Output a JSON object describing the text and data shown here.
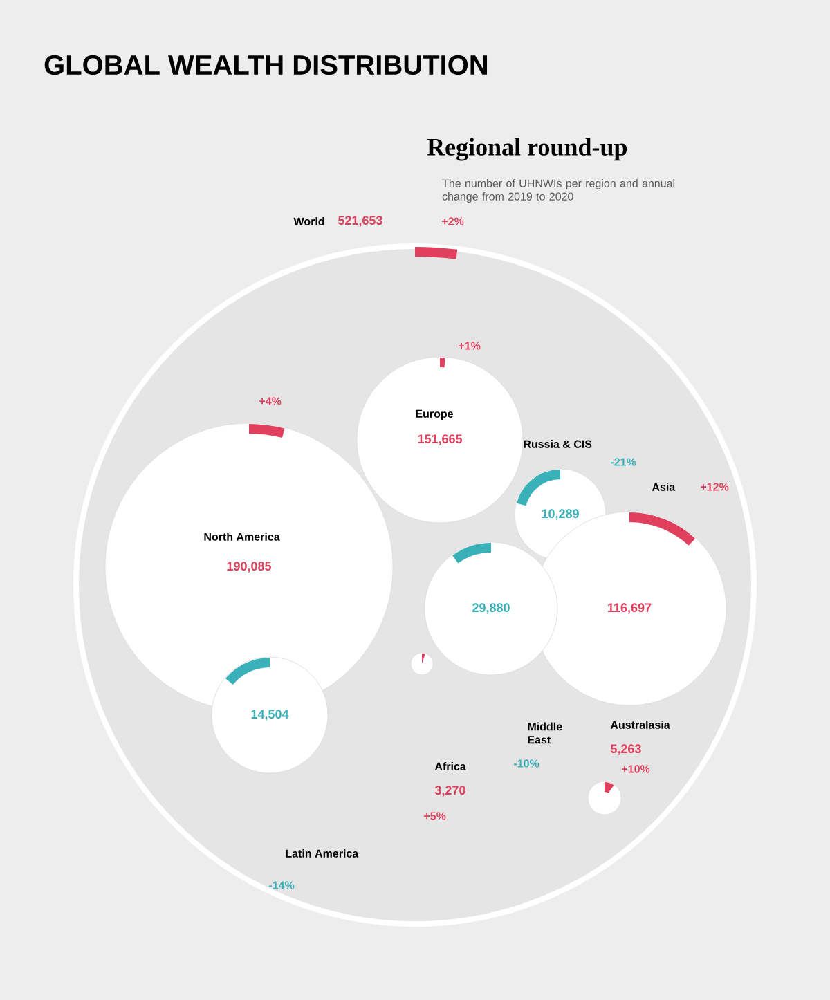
{
  "chart_data": {
    "type": "other",
    "title": "GLOBAL WEALTH DISTRIBUTION",
    "subtitle": "Regional round-up",
    "annotations": [
      "The number of UHNWIs per region and annual change from 2019 to 2020"
    ],
    "categories": [
      "World",
      "North America",
      "Europe",
      "Russia & CIS",
      "Asia",
      "Middle East",
      "Australasia",
      "Africa",
      "Latin America"
    ],
    "series": [
      {
        "values": [
          521653,
          190085,
          151665,
          10289,
          116697,
          29880,
          5263,
          3270,
          14504
        ],
        "value_labels": [
          "521,653",
          "190,085",
          "151,665",
          "10,289",
          "116,697",
          "29,880",
          "5,263",
          "3,270",
          "14,504"
        ]
      },
      {
        "values": [
          2,
          4,
          1,
          -21,
          12,
          -10,
          10,
          5,
          -14
        ],
        "value_labels": [
          "+2%",
          "+4%",
          "+1%",
          "-21%",
          "+12%",
          "-10%",
          "+10%",
          "+5%",
          "-14%"
        ],
        "colors": [
          "#e0405e",
          "#e0405e",
          "#e0405e",
          "#3ab0b8",
          "#e0405e",
          "#3ab0b8",
          "#e0405e",
          "#e0405e",
          "#3ab0b8"
        ]
      }
    ]
  }
}
